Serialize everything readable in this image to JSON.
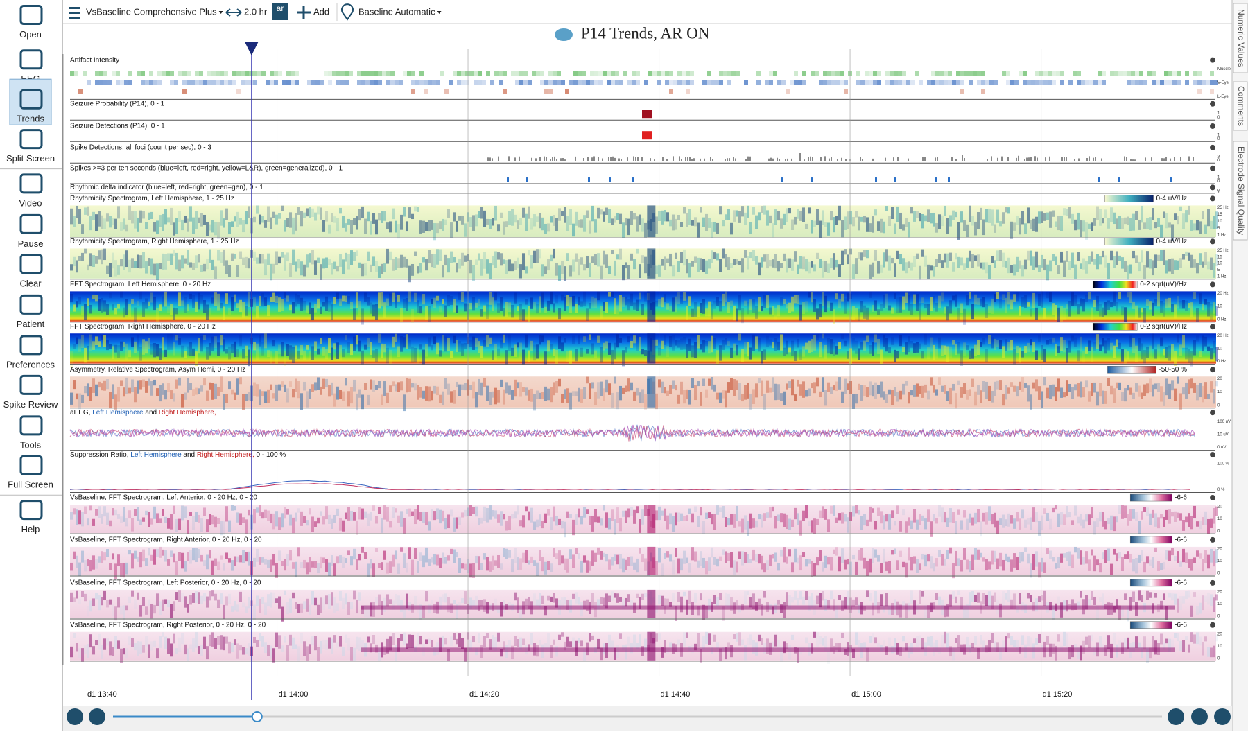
{
  "toolbar": {
    "montage": "VsBaseline Comprehensive Plus",
    "span": "2.0 hr",
    "ar": "ar",
    "add": "Add",
    "baseline": "Baseline Automatic"
  },
  "sidebar": [
    "Open",
    "EEG",
    "Trends",
    "Split Screen",
    "Video",
    "Pause",
    "Clear",
    "Patient",
    "Preferences",
    "Spike Review",
    "Tools",
    "Full Screen",
    "Help"
  ],
  "title": "P14 Trends, AR ON",
  "right_tabs": [
    "Numeric Values",
    "Comments",
    "Electrode Signal Quality"
  ],
  "panels": [
    {
      "label": "Artifact Intensity",
      "axis": [
        "Muscle",
        "V-Eye",
        "L-Eye"
      ]
    },
    {
      "label": "Seizure Probability (P14), 0 - 1",
      "axis": [
        "1",
        "0"
      ]
    },
    {
      "label": "Seizure Detections (P14), 0 - 1",
      "axis": [
        "1",
        "0"
      ]
    },
    {
      "label": "Spike Detections, all foci (count per sec), 0 - 3",
      "axis": [
        "3",
        "0"
      ]
    },
    {
      "label": "Spikes >=3 per ten seconds (blue=left, red=right, yellow=L&R), green=generalized),  0 - 1",
      "axis": [
        "1",
        "0"
      ]
    },
    {
      "label": "Rhythmic delta indicator (blue=left, red=right, green=gen),  0 - 1",
      "axis": [
        "1",
        "0"
      ]
    },
    {
      "label": "Rhythmicity Spectrogram, Left Hemisphere, 1 - 25 Hz",
      "legend": "0-4 uV/Hz",
      "axis": [
        "25 Hz",
        "15",
        "10",
        "5",
        "1 Hz"
      ]
    },
    {
      "label": "Rhythmicity Spectrogram, Right Hemisphere, 1 - 25 Hz",
      "legend": "0-4 uV/Hz",
      "axis": [
        "25 Hz",
        "15",
        "10",
        "5",
        "1 Hz"
      ]
    },
    {
      "label": "FFT Spectrogram, Left Hemisphere, 0 - 20 Hz",
      "legend": "0-2 sqrt(uV)/Hz",
      "axis": [
        "20 Hz",
        "10",
        "0 Hz"
      ]
    },
    {
      "label": "FFT Spectrogram, Right Hemisphere, 0 - 20 Hz",
      "legend": "0-2 sqrt(uV)/Hz",
      "axis": [
        "20 Hz",
        "10",
        "0 Hz"
      ]
    },
    {
      "label": "Asymmetry, Relative Spectrogram, Asym Hemi, 0 - 20 Hz",
      "legend": "-50-50 %",
      "axis": [
        "20",
        "10",
        "0"
      ]
    },
    {
      "label_parts": [
        "aEEG, ",
        "Left Hemisphere",
        " and ",
        "Right Hemisphere,"
      ],
      "axis": [
        "100 uV",
        "10 uV",
        "0 uV"
      ]
    },
    {
      "label_parts": [
        "Suppression Ratio, ",
        "Left Hemisphere",
        " and ",
        "Right Hemisphere,",
        "  0 - 100 %"
      ],
      "axis": [
        "100 %",
        "0 %"
      ]
    },
    {
      "label": "VsBaseline, FFT Spectrogram, Left Anterior, 0 - 20 Hz, 0 - 20",
      "legend": "-6-6",
      "axis": [
        "20",
        "10",
        "0"
      ]
    },
    {
      "label": "VsBaseline, FFT Spectrogram, Right Anterior, 0 - 20 Hz, 0 - 20",
      "legend": "-6-6",
      "axis": [
        "20",
        "10",
        "0"
      ]
    },
    {
      "label": "VsBaseline, FFT Spectrogram, Left Posterior, 0 - 20 Hz, 0 - 20",
      "legend": "-6-6",
      "axis": [
        "20",
        "10",
        "0"
      ]
    },
    {
      "label": "VsBaseline, FFT Spectrogram, Right Posterior, 0 - 20 Hz, 0 - 20",
      "legend": "-6-6",
      "axis": [
        "20",
        "10",
        "0"
      ]
    }
  ],
  "time_labels": [
    "d1 13:40",
    "d1 14:00",
    "d1 14:20",
    "d1 14:40",
    "d1 15:00",
    "d1 15:20"
  ]
}
